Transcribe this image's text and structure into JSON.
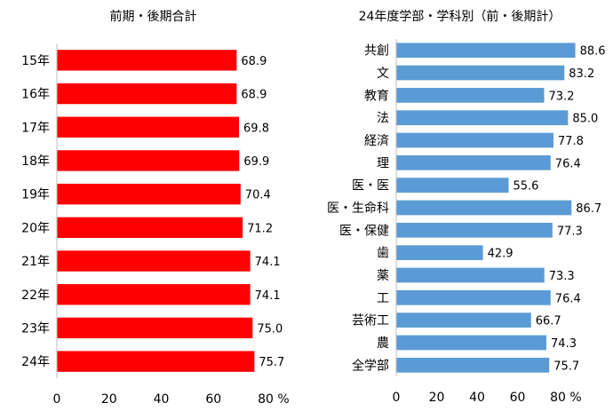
{
  "chart_data": [
    {
      "type": "bar",
      "orientation": "horizontal",
      "title": "前期・後期合計",
      "categories": [
        "15年",
        "16年",
        "17年",
        "18年",
        "19年",
        "20年",
        "21年",
        "22年",
        "23年",
        "24年"
      ],
      "values": [
        68.9,
        68.9,
        69.8,
        69.9,
        70.4,
        71.2,
        74.1,
        74.1,
        75.0,
        75.7
      ],
      "value_labels": [
        "68.9",
        "68.9",
        "69.8",
        "69.9",
        "70.4",
        "71.2",
        "74.1",
        "74.1",
        "75.0",
        "75.7"
      ],
      "xlim": [
        0,
        80
      ],
      "ticks": [
        "0",
        "20",
        "40",
        "60",
        "80"
      ],
      "unit": "%",
      "bar_color": "#ff0000",
      "grid": false
    },
    {
      "type": "bar",
      "orientation": "horizontal",
      "title": "24年度学部・学科別（前・後期計）",
      "categories": [
        "共創",
        "文",
        "教育",
        "法",
        "経済",
        "理",
        "医・医",
        "医・生命科",
        "医・保健",
        "歯",
        "薬",
        "工",
        "芸術工",
        "農",
        "全学部"
      ],
      "values": [
        88.6,
        83.2,
        73.2,
        85.0,
        77.8,
        76.4,
        55.6,
        86.7,
        77.3,
        42.9,
        73.3,
        76.4,
        66.7,
        74.3,
        75.7
      ],
      "value_labels": [
        "88.6",
        "83.2",
        "73.2",
        "85.0",
        "77.8",
        "76.4",
        "55.6",
        "86.7",
        "77.3",
        "42.9",
        "73.3",
        "76.4",
        "66.7",
        "74.3",
        "75.7"
      ],
      "xlim": [
        0,
        80
      ],
      "ticks": [
        "0",
        "20",
        "40",
        "60",
        "80"
      ],
      "unit": "%",
      "bar_color": "#5b9bd5",
      "grid": false
    }
  ]
}
